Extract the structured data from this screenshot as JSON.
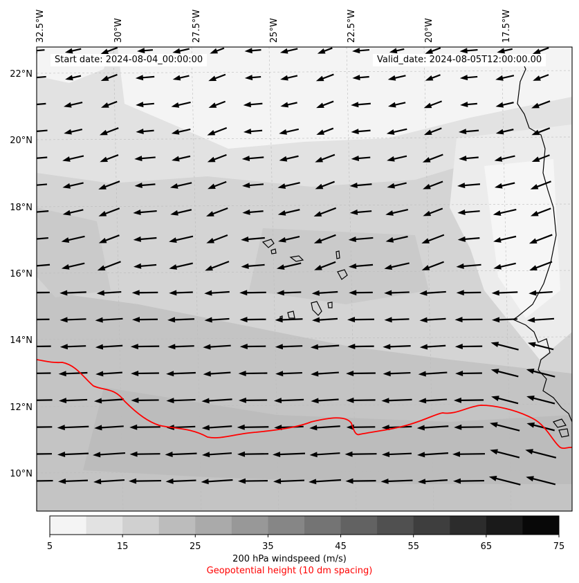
{
  "map": {
    "start_date": "Start date: 2024-08-04_00:00:00",
    "valid_date": "Valid_date: 2024-08-05T12:00:00.00",
    "lon_labels": [
      "32.5°W",
      "30°W",
      "27.5°W",
      "25°W",
      "22.5°W",
      "20°W",
      "17.5°W"
    ],
    "lat_labels": [
      "22°N",
      "20°N",
      "18°N",
      "16°N",
      "14°N",
      "12°N",
      "10°N"
    ],
    "colorbar": {
      "ticks": [
        "5",
        "15",
        "25",
        "35",
        "45",
        "55",
        "65",
        "75"
      ],
      "colors": [
        "#f4f4f4",
        "#e2e2e2",
        "#d0d0d0",
        "#bcbcbc",
        "#aaaaaa",
        "#989898",
        "#868686",
        "#747474",
        "#626262",
        "#505050",
        "#3e3e3e",
        "#2c2c2c",
        "#1a1a1a",
        "#080808"
      ],
      "label": "200 hPa windspeed (m/s)",
      "sublabel": "Geopotential height (10 dm spacing)",
      "sublabel_color": "#ff0000"
    },
    "contour_color": "#ff0000"
  }
}
